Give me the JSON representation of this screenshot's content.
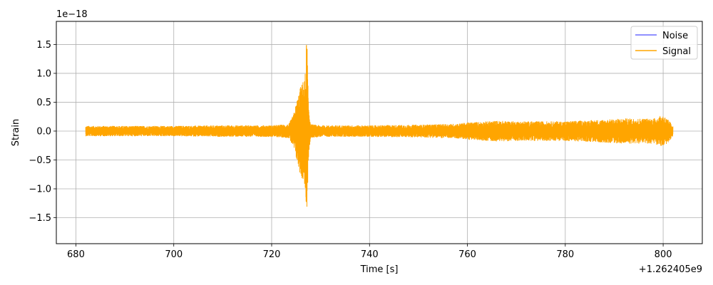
{
  "chart_data": {
    "type": "line",
    "xlabel": "Time [s]",
    "ylabel": "Strain",
    "x_offset_text": "+1.262405e9",
    "y_scale_text": "1e−18",
    "xlim": [
      676,
      808
    ],
    "ylim": [
      -1.95,
      1.9
    ],
    "x_ticks": [
      680,
      700,
      720,
      740,
      760,
      780,
      800
    ],
    "x_tick_labels": [
      "680",
      "700",
      "720",
      "740",
      "760",
      "780",
      "800"
    ],
    "y_ticks": [
      -1.5,
      -1.0,
      -0.5,
      0.0,
      0.5,
      1.0,
      1.5
    ],
    "y_tick_labels": [
      "−1.5",
      "−1.0",
      "−0.5",
      "0.0",
      "0.5",
      "1.0",
      "1.5"
    ],
    "grid": true,
    "legend_position": "top-right",
    "series": [
      {
        "name": "Noise",
        "color": "#6b6bff",
        "points": []
      },
      {
        "name": "Signal",
        "color": "#ffa500",
        "envelope_t": [
          682.0,
          684.0,
          690.0,
          700.0,
          710.0,
          720.0,
          723.5,
          724.5,
          725.2,
          725.8,
          726.3,
          726.8,
          727.0,
          727.15,
          727.3,
          727.5,
          728.0,
          730.0,
          740.0,
          750.0,
          758.0,
          760.0,
          766.0,
          770.0,
          780.0,
          788.0,
          792.0,
          798.0,
          800.0,
          801.0,
          802.0
        ],
        "envelope_a": [
          0.09,
          0.09,
          0.09,
          0.09,
          0.1,
          0.1,
          0.12,
          0.3,
          0.55,
          0.75,
          0.85,
          0.95,
          1.25,
          1.75,
          1.4,
          0.5,
          0.12,
          0.1,
          0.1,
          0.11,
          0.13,
          0.15,
          0.18,
          0.17,
          0.17,
          0.2,
          0.22,
          0.22,
          0.28,
          0.2,
          0.1
        ]
      }
    ]
  }
}
